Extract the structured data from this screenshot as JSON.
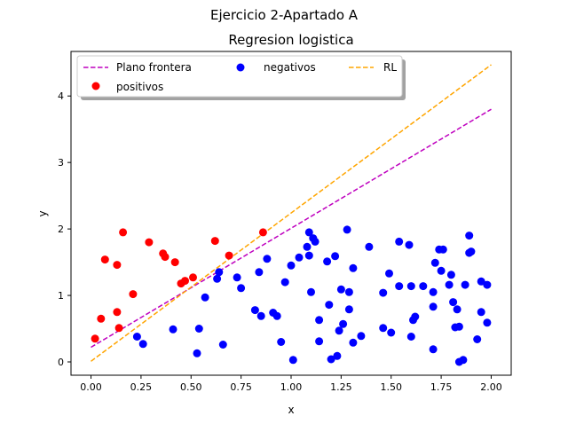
{
  "chart_data": {
    "type": "scatter",
    "suptitle": "Ejercicio 2-Apartado A",
    "title": "Regresion logistica",
    "xlabel": "x",
    "ylabel": "y",
    "xlim": [
      -0.1,
      2.1
    ],
    "ylim": [
      -0.2,
      4.67
    ],
    "x_ticks": [
      0.0,
      0.25,
      0.5,
      0.75,
      1.0,
      1.25,
      1.5,
      1.75,
      2.0
    ],
    "x_tick_labels": [
      "0.00",
      "0.25",
      "0.50",
      "0.75",
      "1.00",
      "1.25",
      "1.50",
      "1.75",
      "2.00"
    ],
    "y_ticks": [
      0,
      1,
      2,
      3,
      4
    ],
    "y_tick_labels": [
      "0",
      "1",
      "2",
      "3",
      "4"
    ],
    "grid": false,
    "legend": {
      "placement": "top-left",
      "columns": 3,
      "entries": [
        "Plano frontera",
        "negativos",
        "RL",
        "positivos"
      ]
    },
    "lines": [
      {
        "name": "Plano frontera",
        "color": "#bf00bf",
        "style": "dashed",
        "x": [
          0,
          2
        ],
        "y": [
          0.22,
          3.8
        ]
      },
      {
        "name": "RL",
        "color": "#ffa500",
        "style": "dashed",
        "x": [
          0,
          2
        ],
        "y": [
          0.01,
          4.47
        ]
      }
    ],
    "series": [
      {
        "name": "positivos",
        "color": "#ff0000",
        "points": [
          [
            0.02,
            0.35
          ],
          [
            0.05,
            0.65
          ],
          [
            0.07,
            1.54
          ],
          [
            0.13,
            1.46
          ],
          [
            0.13,
            0.75
          ],
          [
            0.14,
            0.51
          ],
          [
            0.16,
            1.95
          ],
          [
            0.21,
            1.02
          ],
          [
            0.29,
            1.8
          ],
          [
            0.36,
            1.63
          ],
          [
            0.37,
            1.58
          ],
          [
            0.42,
            1.5
          ],
          [
            0.45,
            1.18
          ],
          [
            0.47,
            1.22
          ],
          [
            0.51,
            1.27
          ],
          [
            0.62,
            1.82
          ],
          [
            0.69,
            1.6
          ],
          [
            0.86,
            1.95
          ]
        ]
      },
      {
        "name": "negativos",
        "color": "#0000ff",
        "points": [
          [
            0.23,
            0.38
          ],
          [
            0.26,
            0.27
          ],
          [
            0.41,
            0.49
          ],
          [
            0.53,
            0.13
          ],
          [
            0.54,
            0.5
          ],
          [
            0.57,
            0.97
          ],
          [
            0.63,
            1.25
          ],
          [
            0.64,
            1.35
          ],
          [
            0.66,
            0.26
          ],
          [
            0.73,
            1.27
          ],
          [
            0.75,
            1.11
          ],
          [
            0.82,
            0.78
          ],
          [
            0.84,
            1.35
          ],
          [
            0.85,
            0.69
          ],
          [
            0.88,
            1.55
          ],
          [
            0.91,
            0.74
          ],
          [
            0.93,
            0.69
          ],
          [
            0.95,
            0.3
          ],
          [
            0.97,
            1.2
          ],
          [
            1.0,
            1.45
          ],
          [
            1.01,
            0.03
          ],
          [
            1.04,
            1.57
          ],
          [
            1.08,
            1.73
          ],
          [
            1.09,
            1.95
          ],
          [
            1.09,
            1.6
          ],
          [
            1.1,
            1.05
          ],
          [
            1.11,
            1.86
          ],
          [
            1.12,
            1.81
          ],
          [
            1.14,
            0.31
          ],
          [
            1.14,
            0.63
          ],
          [
            1.18,
            1.51
          ],
          [
            1.19,
            0.86
          ],
          [
            1.2,
            0.04
          ],
          [
            1.22,
            1.59
          ],
          [
            1.23,
            0.09
          ],
          [
            1.24,
            0.47
          ],
          [
            1.25,
            1.09
          ],
          [
            1.26,
            0.57
          ],
          [
            1.28,
            1.99
          ],
          [
            1.29,
            0.79
          ],
          [
            1.29,
            1.05
          ],
          [
            1.31,
            1.41
          ],
          [
            1.31,
            0.29
          ],
          [
            1.35,
            0.39
          ],
          [
            1.39,
            1.73
          ],
          [
            1.46,
            0.51
          ],
          [
            1.46,
            1.04
          ],
          [
            1.49,
            1.33
          ],
          [
            1.5,
            0.44
          ],
          [
            1.54,
            1.81
          ],
          [
            1.54,
            1.14
          ],
          [
            1.59,
            1.76
          ],
          [
            1.6,
            1.14
          ],
          [
            1.6,
            0.38
          ],
          [
            1.61,
            0.63
          ],
          [
            1.62,
            0.68
          ],
          [
            1.66,
            1.14
          ],
          [
            1.71,
            0.83
          ],
          [
            1.71,
            1.05
          ],
          [
            1.71,
            0.19
          ],
          [
            1.72,
            1.49
          ],
          [
            1.74,
            1.69
          ],
          [
            1.75,
            1.37
          ],
          [
            1.76,
            1.69
          ],
          [
            1.79,
            1.16
          ],
          [
            1.8,
            1.31
          ],
          [
            1.81,
            0.9
          ],
          [
            1.82,
            0.52
          ],
          [
            1.83,
            0.79
          ],
          [
            1.84,
            0.0
          ],
          [
            1.84,
            0.53
          ],
          [
            1.86,
            0.03
          ],
          [
            1.87,
            1.16
          ],
          [
            1.89,
            1.9
          ],
          [
            1.89,
            1.64
          ],
          [
            1.9,
            1.66
          ],
          [
            1.93,
            0.34
          ],
          [
            1.95,
            1.21
          ],
          [
            1.95,
            0.75
          ],
          [
            1.98,
            0.59
          ],
          [
            1.98,
            1.16
          ]
        ]
      }
    ]
  }
}
